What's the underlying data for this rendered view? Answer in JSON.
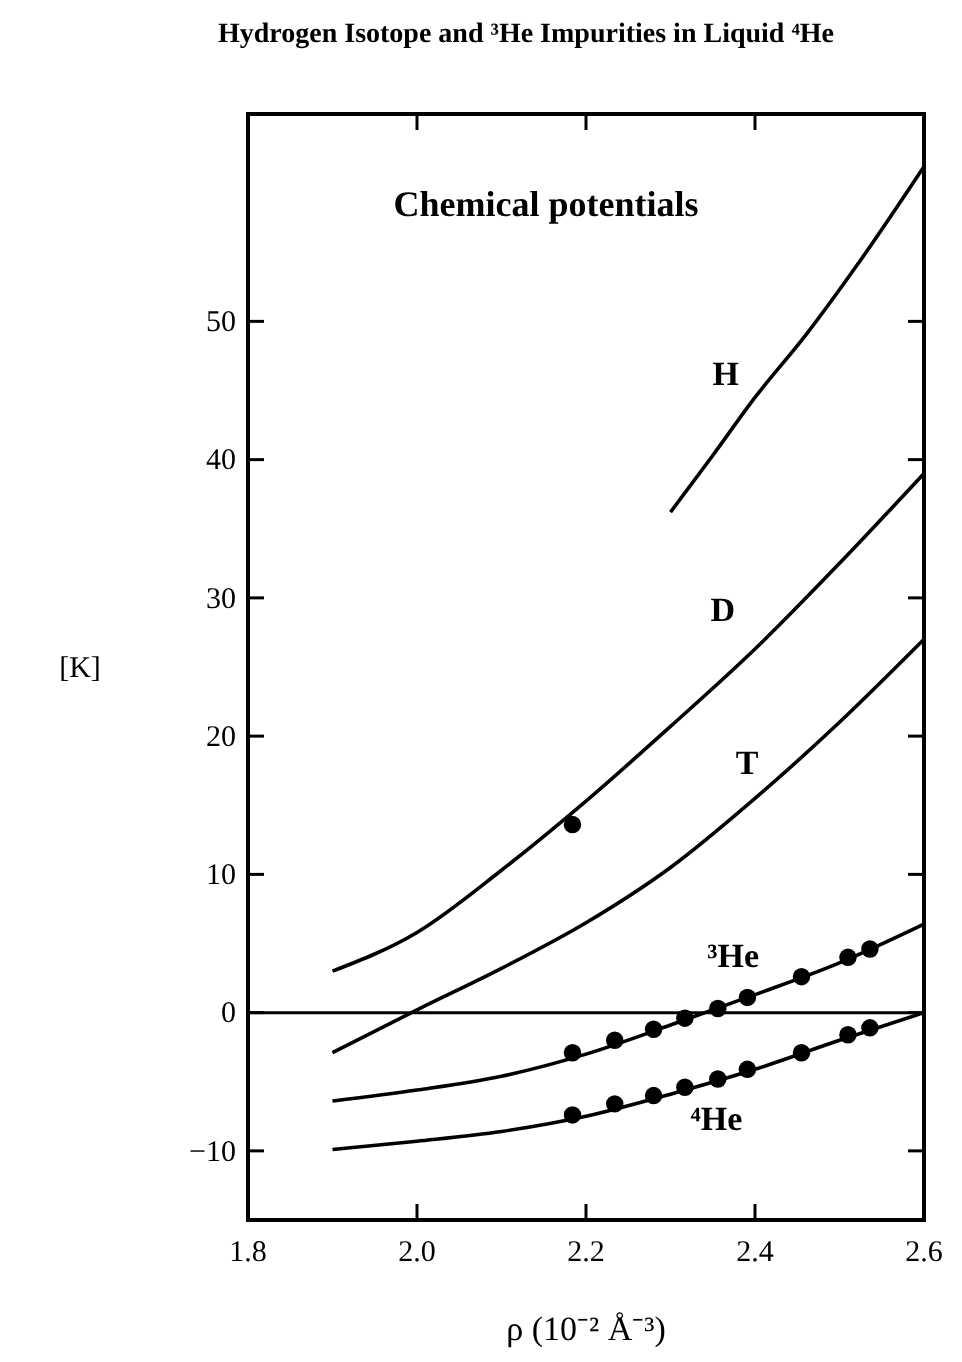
{
  "chart_data": {
    "type": "line",
    "title": "Hydrogen Isotope and ³He Impurities in Liquid ⁴He",
    "xlabel": "ρ  (10⁻² Å⁻³)",
    "ylabel": "[K]",
    "annotations": [
      "Chemical potentials"
    ],
    "xlim": [
      1.8,
      2.6
    ],
    "xticks": [
      {
        "value": 1.8,
        "label": "1.8"
      },
      {
        "value": 2.0,
        "label": "2.0"
      },
      {
        "value": 2.2,
        "label": "2.2"
      },
      {
        "value": 2.4,
        "label": "2.4"
      },
      {
        "value": 2.6,
        "label": "2.6"
      }
    ],
    "ylim": [
      -15,
      65
    ],
    "yticks": [
      {
        "value": -10,
        "label": "−10"
      },
      0,
      10,
      20,
      30,
      40,
      50
    ],
    "grid": false,
    "line_style": "solid",
    "ref_lines": [
      {
        "axis": "y",
        "value": 0,
        "color": "#000000"
      }
    ],
    "series": [
      {
        "name": "H",
        "color": "#000000",
        "x": [
          2.3,
          2.35,
          2.4,
          2.46,
          2.52,
          2.6
        ],
        "values": [
          36.2,
          40.3,
          44.5,
          49,
          54,
          61.2
        ]
      },
      {
        "name": "D",
        "color": "#000000",
        "x": [
          1.9,
          2.0,
          2.1,
          2.2,
          2.3,
          2.4,
          2.5,
          2.6
        ],
        "values": [
          3,
          5.8,
          10.3,
          15.3,
          20.7,
          26.3,
          32.5,
          39
        ]
      },
      {
        "name": "T",
        "color": "#000000",
        "x": [
          1.9,
          2.0,
          2.1,
          2.2,
          2.3,
          2.4,
          2.5,
          2.6
        ],
        "values": [
          -2.9,
          0.2,
          3.2,
          6.5,
          10.5,
          15.5,
          21,
          27
        ]
      },
      {
        "name": "³He",
        "color": "#000000",
        "x": [
          1.9,
          2.0,
          2.1,
          2.2,
          2.3,
          2.4,
          2.5,
          2.6
        ],
        "values": [
          -6.4,
          -5.6,
          -4.6,
          -3,
          -0.9,
          1.3,
          3.6,
          6.4
        ]
      },
      {
        "name": "⁴He",
        "color": "#000000",
        "x": [
          1.9,
          2.0,
          2.1,
          2.2,
          2.3,
          2.4,
          2.5,
          2.6
        ],
        "values": [
          -9.9,
          -9.3,
          -8.6,
          -7.5,
          -5.9,
          -4.1,
          -2,
          0
        ]
      },
      {
        "type": "scatter",
        "marker": "circle",
        "color": "#000000",
        "x": [
          2.184,
          2.234,
          2.28,
          2.317,
          2.356,
          2.391,
          2.455,
          2.51,
          2.536
        ],
        "values": [
          -2.9,
          -2,
          -1.2,
          -0.4,
          0.3,
          1.1,
          2.6,
          4,
          4.6
        ]
      },
      {
        "type": "scatter",
        "marker": "circle",
        "color": "#000000",
        "x": [
          2.184,
          2.234,
          2.28,
          2.317,
          2.356,
          2.391,
          2.455,
          2.51,
          2.536
        ],
        "values": [
          -7.4,
          -6.6,
          -6,
          -5.4,
          -4.8,
          -4.1,
          -2.9,
          -1.6,
          -1.1
        ]
      },
      {
        "type": "scatter",
        "marker": "circle",
        "color": "#000000",
        "x": [
          2.184
        ],
        "values": [
          13.6
        ]
      }
    ]
  }
}
